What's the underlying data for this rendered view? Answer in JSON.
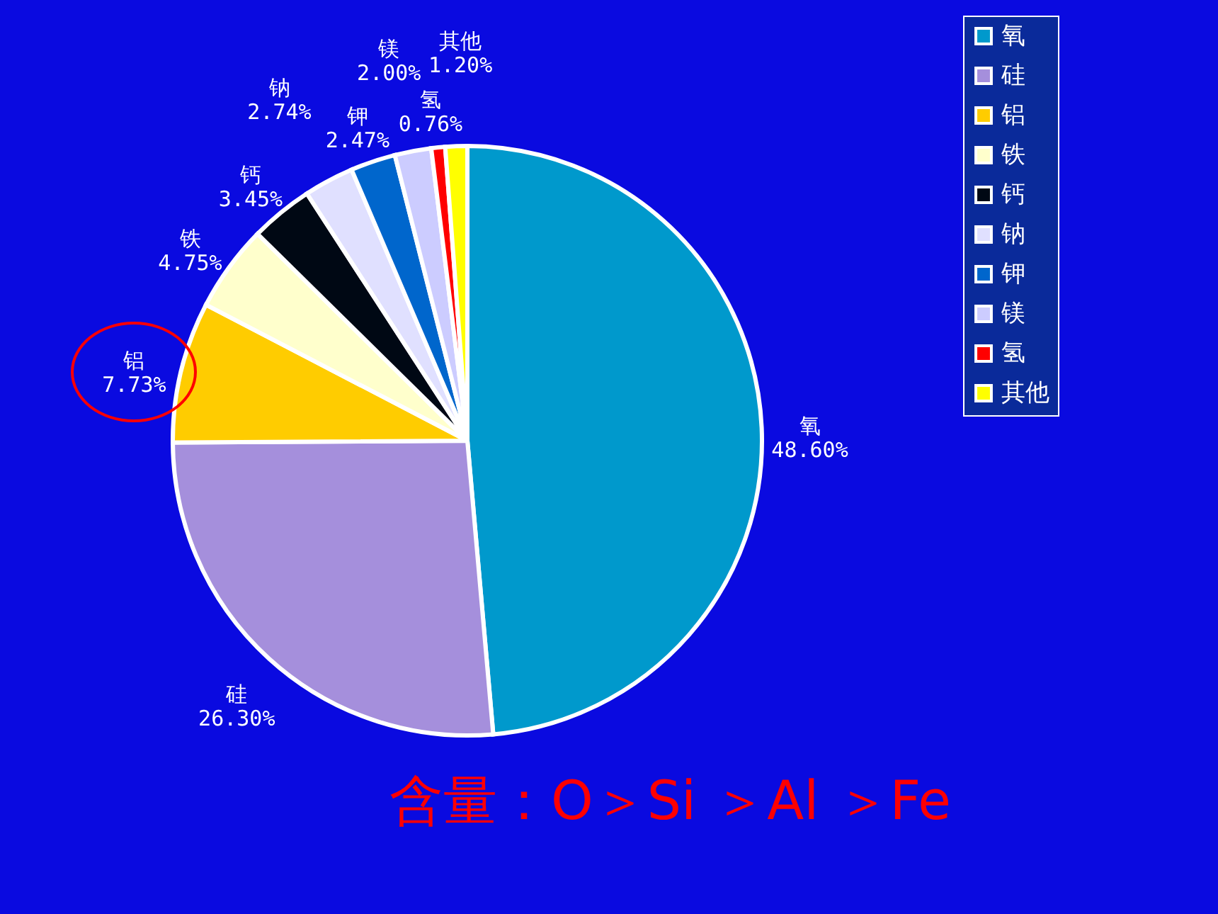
{
  "chart_data": {
    "type": "pie",
    "categories": [
      "氧",
      "硅",
      "铝",
      "铁",
      "钙",
      "钠",
      "钾",
      "镁",
      "氢",
      "其他"
    ],
    "values": [
      48.6,
      26.3,
      7.73,
      4.75,
      3.45,
      2.74,
      2.47,
      2.0,
      0.76,
      1.2
    ],
    "value_labels": [
      "48.60%",
      "26.30%",
      "7.73%",
      "4.75%",
      "3.45%",
      "2.74%",
      "2.47%",
      "2.00%",
      "0.76%",
      "1.20%"
    ],
    "colors": [
      "#0099cc",
      "#a58fdc",
      "#ffcc00",
      "#ffffcc",
      "#000814",
      "#e0e0ff",
      "#0066cc",
      "#ccccff",
      "#ff0000",
      "#ffff00"
    ],
    "legend": "right",
    "annotations": [
      "含量：O＞Si ＞Al ＞Fe"
    ]
  }
}
